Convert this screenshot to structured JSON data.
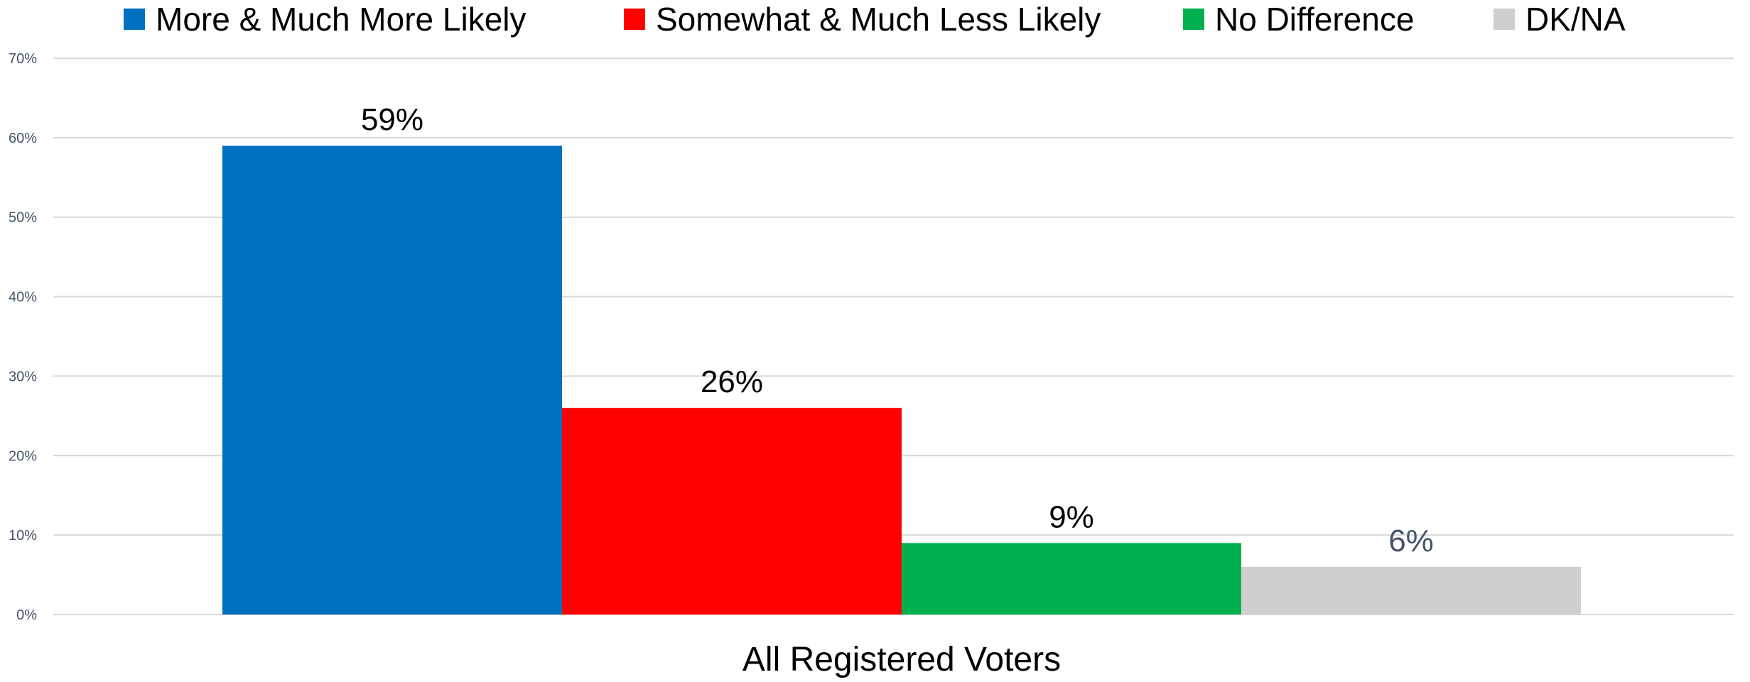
{
  "chart_data": {
    "type": "bar",
    "categories": [
      "All Registered Voters"
    ],
    "series": [
      {
        "name": "More & Much More Likely",
        "values": [
          59
        ],
        "label": "59%",
        "color": "#0070C0"
      },
      {
        "name": "Somewhat & Much Less Likely",
        "values": [
          26
        ],
        "label": "26%",
        "color": "#FF0000"
      },
      {
        "name": "No Difference",
        "values": [
          9
        ],
        "label": "9%",
        "color": "#00B050"
      },
      {
        "name": "DK/NA",
        "values": [
          6
        ],
        "label": "6%",
        "color": "#D0CECE"
      }
    ],
    "ylim": [
      0,
      70
    ],
    "yticks": [
      {
        "value": 0,
        "label": "0%"
      },
      {
        "value": 10,
        "label": "10%"
      },
      {
        "value": 20,
        "label": "20%"
      },
      {
        "value": 30,
        "label": "30%"
      },
      {
        "value": 40,
        "label": "40%"
      },
      {
        "value": 50,
        "label": "50%"
      },
      {
        "value": 60,
        "label": "60%"
      },
      {
        "value": 70,
        "label": "70%"
      }
    ],
    "xlabel": "All Registered Voters",
    "ylabel": "",
    "title": "",
    "grid": true,
    "legend": "top",
    "colors": {
      "grid": "#D9D9D9",
      "axis_text": "#44546A",
      "label_text": "#000000",
      "muted_label_text": "#44546A"
    }
  }
}
